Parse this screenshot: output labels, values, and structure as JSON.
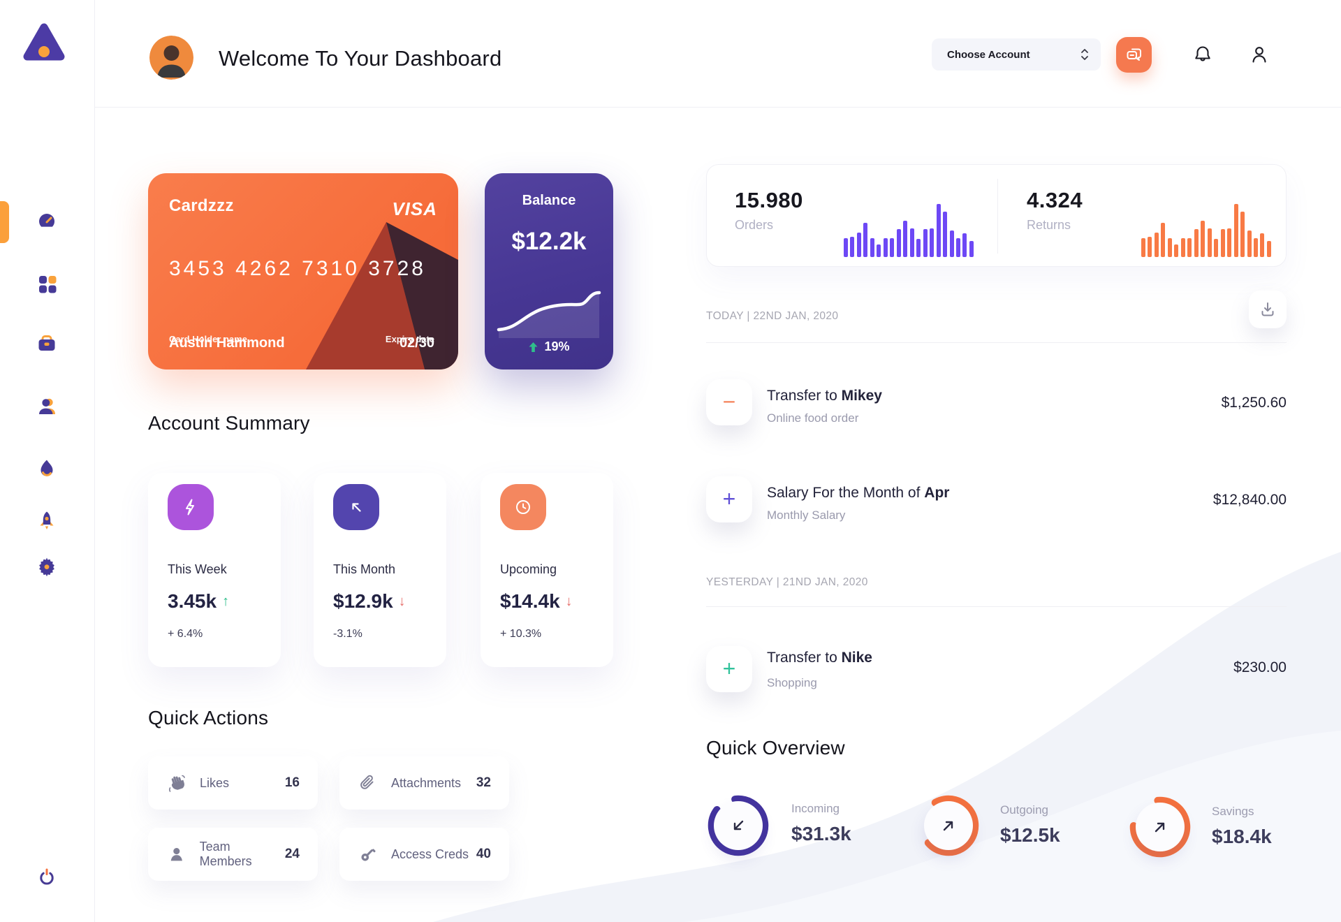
{
  "sidebar": {
    "logo_icon": "triangle-logo",
    "items": [
      {
        "icon": "speedometer-icon",
        "active": true
      },
      {
        "icon": "grid-icon",
        "active": false
      },
      {
        "icon": "briefcase-icon",
        "active": false
      },
      {
        "icon": "team-icon",
        "active": false
      },
      {
        "icon": "flame-icon",
        "active": false
      },
      {
        "icon": "rocket-icon",
        "active": false
      },
      {
        "icon": "gear-icon",
        "active": false
      }
    ],
    "power_icon": "power-icon",
    "accent_orange": "#FBA03B",
    "accent_purple": "#473B97"
  },
  "header": {
    "title": "Welcome To Your Dashboard",
    "account_dropdown_label": "Choose Account"
  },
  "bank_card": {
    "name": "Cardzzz",
    "brand": "VISA",
    "number": "3453 4262 7310 3728",
    "holder_label": "Card Holder name",
    "holder_name": "Austin Hammond",
    "expiry_label": "Expiry date",
    "expiry": "02/30",
    "bg_color": "#F66B39"
  },
  "balance_card": {
    "title": "Balance",
    "amount": "$12.2k",
    "change": "19%",
    "change_color": "#2FBE8B",
    "bg_color": "#473794"
  },
  "stats_card": {
    "orders": {
      "value": "15.980",
      "label": "Orders",
      "color": "#6D48F5",
      "bars": [
        0.35,
        0.38,
        0.46,
        0.64,
        0.35,
        0.24,
        0.35,
        0.35,
        0.53,
        0.68,
        0.54,
        0.34,
        0.53,
        0.54,
        1,
        0.86,
        0.5,
        0.35,
        0.45,
        0.3
      ]
    },
    "returns": {
      "value": "4.324",
      "label": "Returns",
      "color": "#F87A45",
      "bars": [
        0.35,
        0.38,
        0.46,
        0.64,
        0.35,
        0.24,
        0.35,
        0.35,
        0.53,
        0.68,
        0.54,
        0.34,
        0.53,
        0.54,
        1,
        0.86,
        0.5,
        0.35,
        0.45,
        0.3
      ]
    }
  },
  "account_summary": {
    "title": "Account Summary",
    "cards": [
      {
        "icon": "lightning-icon",
        "icon_bg": "#AC54DC",
        "label": "This Week",
        "value": "3.45k",
        "arrow": "↑",
        "arrow_color": "#2FBE8B",
        "delta": "+ 6.4%"
      },
      {
        "icon": "arrow-up-left-icon",
        "icon_bg": "#5345AE",
        "label": "This Month",
        "value": "$12.9k",
        "arrow": "↓",
        "arrow_color": "#E66F6B",
        "delta": "-3.1%"
      },
      {
        "icon": "clock-icon",
        "icon_bg": "#F4875F",
        "label": "Upcoming",
        "value": "$14.4k",
        "arrow": "↓",
        "arrow_color": "#E66F6B",
        "delta": "+ 10.3%"
      }
    ]
  },
  "quick_actions": {
    "title": "Quick Actions",
    "items": [
      {
        "icon": "waving-hand-icon",
        "label": "Likes",
        "count": "16"
      },
      {
        "icon": "paperclip-icon",
        "label": "Attachments",
        "count": "32"
      },
      {
        "icon": "member-icon",
        "label": "Team Members",
        "count": "24"
      },
      {
        "icon": "key-icon",
        "label": "Access Creds",
        "count": "40"
      }
    ]
  },
  "activity": {
    "download_icon": "download-icon",
    "sections": [
      {
        "date_label": "TODAY | 22ND JAN, 2020",
        "transactions": [
          {
            "symbol": "−",
            "symbol_color": "#F5845C",
            "title_prefix": "Transfer to ",
            "title_bold": "Mikey",
            "subtitle": "Online food order",
            "amount": "$1,250.60"
          },
          {
            "symbol": "+",
            "symbol_color": "#6050D6",
            "title_prefix": "Salary For the Month of ",
            "title_bold": "Apr",
            "subtitle": "Monthly Salary",
            "amount": "$12,840.00"
          }
        ]
      },
      {
        "date_label": "YESTERDAY | 21ND JAN, 2020",
        "transactions": [
          {
            "symbol": "+",
            "symbol_color": "#32C29B",
            "title_prefix": "Transfer to ",
            "title_bold": "Nike",
            "subtitle": "Shopping",
            "amount": "$230.00"
          }
        ]
      }
    ]
  },
  "quick_overview": {
    "title": "Quick Overview",
    "gauges": [
      {
        "label": "Incoming",
        "value": "$31.3k",
        "color": "#43339E",
        "percent": 87,
        "rotation_deg": -97,
        "arrow": "down-left"
      },
      {
        "label": "Outgoing",
        "value": "$12.5k",
        "color": "#F4713E",
        "percent": 72,
        "rotation_deg": -120,
        "arrow": "up-right"
      },
      {
        "label": "Savings",
        "value": "$18.4k",
        "color": "#F4713E",
        "percent": 77,
        "rotation_deg": -95,
        "arrow": "up-right"
      }
    ]
  }
}
